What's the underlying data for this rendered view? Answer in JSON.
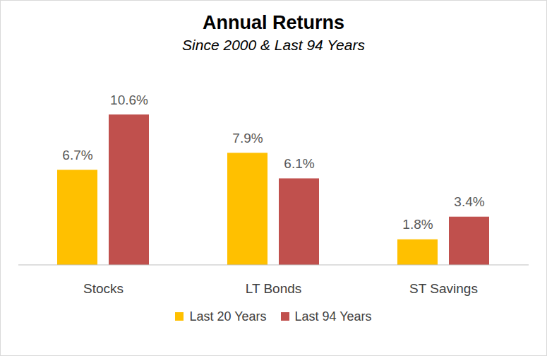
{
  "chart_data": {
    "type": "bar",
    "title": "Annual Returns",
    "subtitle": "Since 2000 & Last 94 Years",
    "categories": [
      "Stocks",
      "LT Bonds",
      "ST Savings"
    ],
    "series": [
      {
        "name": "Last 20 Years",
        "color": "#FFC000",
        "values": [
          6.7,
          7.9,
          1.8
        ],
        "value_labels": [
          "6.7%",
          "7.9%",
          "1.8%"
        ]
      },
      {
        "name": "Last 94 Years",
        "color": "#C0504D",
        "values": [
          10.6,
          6.1,
          3.4
        ],
        "value_labels": [
          "10.6%",
          "6.1%",
          "3.4%"
        ]
      }
    ],
    "ylim": [
      0,
      12
    ],
    "data_labels": true,
    "tick_labels": "x",
    "legend": "bottom",
    "grid": false
  }
}
